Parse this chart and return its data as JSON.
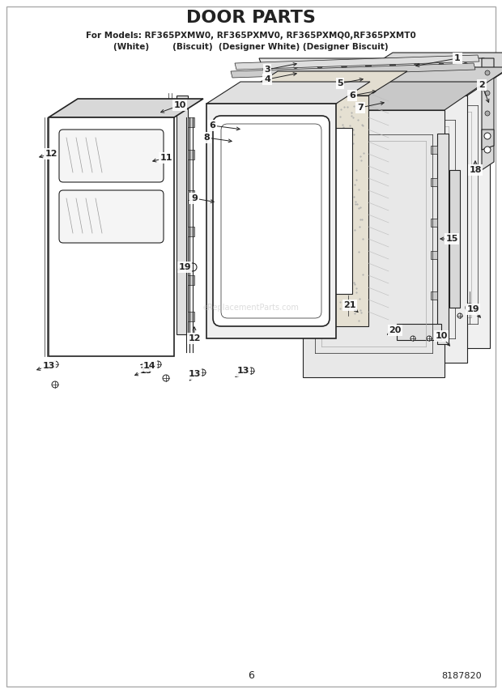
{
  "title": "DOOR PARTS",
  "subtitle_line1": "For Models: RF365PXMW0, RF365PXMV0, RF365PXMQ0,RF365PXMT0",
  "subtitle_line2": "(White)        (Biscuit)  (Designer White) (Designer Biscuit)",
  "page_number": "6",
  "part_number": "8187820",
  "watermark": "eReplacementParts.com",
  "bg": "#ffffff",
  "lc": "#222222",
  "figsize": [
    6.2,
    8.56
  ],
  "dpi": 100
}
